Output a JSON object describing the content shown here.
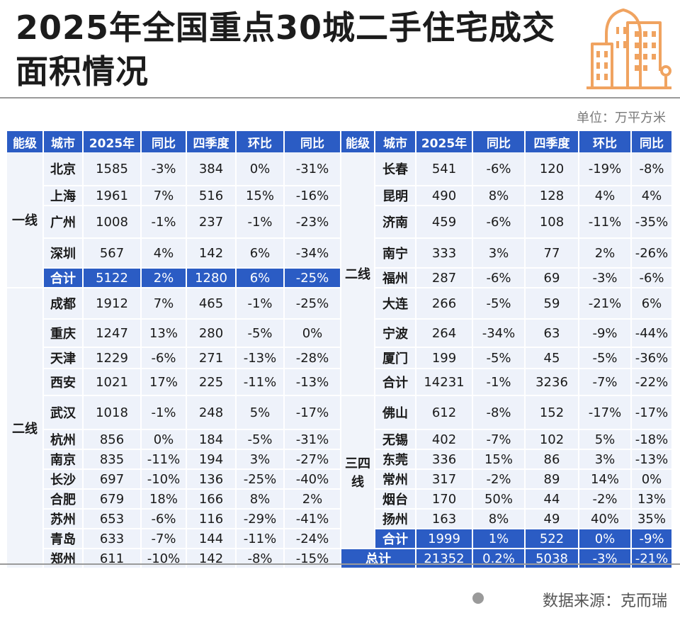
{
  "title": "2025年全国重点30城二手住宅成交面积情况",
  "unit": "单位：万平方米",
  "source": "数据来源：克而瑞",
  "logo_icon": "buildings-icon",
  "colors": {
    "header": "#2b5cc4",
    "cell": "#eef2fa",
    "logo": "#f0a360"
  },
  "headers": [
    "能级",
    "城市",
    "2025年",
    "同比",
    "四季度",
    "环比",
    "同比"
  ],
  "tiers": {
    "t1": "一线",
    "t2": "二线",
    "t3": "三四线"
  },
  "labels": {
    "subtotal": "合计",
    "total": "总计"
  },
  "left": {
    "tier1": [
      {
        "city": "北京",
        "y2025": "1585",
        "yoy": "-3%",
        "q4": "384",
        "qoq": "0%",
        "q4yoy": "-31%"
      },
      {
        "city": "上海",
        "y2025": "1961",
        "yoy": "7%",
        "q4": "516",
        "qoq": "15%",
        "q4yoy": "-16%"
      },
      {
        "city": "广州",
        "y2025": "1008",
        "yoy": "-1%",
        "q4": "237",
        "qoq": "-1%",
        "q4yoy": "-23%"
      },
      {
        "city": "深圳",
        "y2025": "567",
        "yoy": "4%",
        "q4": "142",
        "qoq": "6%",
        "q4yoy": "-34%"
      }
    ],
    "tier1_total": {
      "y2025": "5122",
      "yoy": "2%",
      "q4": "1280",
      "qoq": "6%",
      "q4yoy": "-25%"
    },
    "tier2": [
      {
        "city": "成都",
        "y2025": "1912",
        "yoy": "7%",
        "q4": "465",
        "qoq": "-1%",
        "q4yoy": "-25%"
      },
      {
        "city": "重庆",
        "y2025": "1247",
        "yoy": "13%",
        "q4": "280",
        "qoq": "-5%",
        "q4yoy": "0%"
      },
      {
        "city": "天津",
        "y2025": "1229",
        "yoy": "-6%",
        "q4": "271",
        "qoq": "-13%",
        "q4yoy": "-28%"
      },
      {
        "city": "西安",
        "y2025": "1021",
        "yoy": "17%",
        "q4": "225",
        "qoq": "-11%",
        "q4yoy": "-13%"
      },
      {
        "city": "武汉",
        "y2025": "1018",
        "yoy": "-1%",
        "q4": "248",
        "qoq": "5%",
        "q4yoy": "-17%"
      },
      {
        "city": "杭州",
        "y2025": "856",
        "yoy": "0%",
        "q4": "184",
        "qoq": "-5%",
        "q4yoy": "-31%"
      },
      {
        "city": "南京",
        "y2025": "835",
        "yoy": "-11%",
        "q4": "194",
        "qoq": "3%",
        "q4yoy": "-27%"
      },
      {
        "city": "长沙",
        "y2025": "697",
        "yoy": "-10%",
        "q4": "136",
        "qoq": "-25%",
        "q4yoy": "-40%"
      },
      {
        "city": "合肥",
        "y2025": "679",
        "yoy": "18%",
        "q4": "166",
        "qoq": "8%",
        "q4yoy": "2%"
      },
      {
        "city": "苏州",
        "y2025": "653",
        "yoy": "-6%",
        "q4": "116",
        "qoq": "-29%",
        "q4yoy": "-41%"
      },
      {
        "city": "青岛",
        "y2025": "633",
        "yoy": "-7%",
        "q4": "144",
        "qoq": "-11%",
        "q4yoy": "-24%"
      },
      {
        "city": "郑州",
        "y2025": "611",
        "yoy": "-10%",
        "q4": "142",
        "qoq": "-8%",
        "q4yoy": "-15%"
      }
    ]
  },
  "right": {
    "tier2": [
      {
        "city": "长春",
        "y2025": "541",
        "yoy": "-6%",
        "q4": "120",
        "qoq": "-19%",
        "q4yoy": "-8%"
      },
      {
        "city": "昆明",
        "y2025": "490",
        "yoy": "8%",
        "q4": "128",
        "qoq": "4%",
        "q4yoy": "4%"
      },
      {
        "city": "济南",
        "y2025": "459",
        "yoy": "-6%",
        "q4": "108",
        "qoq": "-11%",
        "q4yoy": "-35%"
      },
      {
        "city": "南宁",
        "y2025": "333",
        "yoy": "3%",
        "q4": "77",
        "qoq": "2%",
        "q4yoy": "-26%"
      },
      {
        "city": "福州",
        "y2025": "287",
        "yoy": "-6%",
        "q4": "69",
        "qoq": "-3%",
        "q4yoy": "-6%"
      },
      {
        "city": "大连",
        "y2025": "266",
        "yoy": "-5%",
        "q4": "59",
        "qoq": "-21%",
        "q4yoy": "6%"
      },
      {
        "city": "宁波",
        "y2025": "264",
        "yoy": "-34%",
        "q4": "63",
        "qoq": "-9%",
        "q4yoy": "-44%"
      },
      {
        "city": "厦门",
        "y2025": "199",
        "yoy": "-5%",
        "q4": "45",
        "qoq": "-5%",
        "q4yoy": "-36%"
      }
    ],
    "tier2_total": {
      "city": "合计",
      "y2025": "14231",
      "yoy": "-1%",
      "q4": "3236",
      "qoq": "-7%",
      "q4yoy": "-22%"
    },
    "tier3": [
      {
        "city": "佛山",
        "y2025": "612",
        "yoy": "-8%",
        "q4": "152",
        "qoq": "-17%",
        "q4yoy": "-17%"
      },
      {
        "city": "无锡",
        "y2025": "402",
        "yoy": "-7%",
        "q4": "102",
        "qoq": "5%",
        "q4yoy": "-18%"
      },
      {
        "city": "东莞",
        "y2025": "336",
        "yoy": "15%",
        "q4": "86",
        "qoq": "3%",
        "q4yoy": "-13%"
      },
      {
        "city": "常州",
        "y2025": "317",
        "yoy": "-2%",
        "q4": "89",
        "qoq": "14%",
        "q4yoy": "0%"
      },
      {
        "city": "烟台",
        "y2025": "170",
        "yoy": "50%",
        "q4": "44",
        "qoq": "-2%",
        "q4yoy": "13%"
      },
      {
        "city": "扬州",
        "y2025": "163",
        "yoy": "8%",
        "q4": "49",
        "qoq": "40%",
        "q4yoy": "35%"
      }
    ],
    "tier3_total": {
      "y2025": "1999",
      "yoy": "1%",
      "q4": "522",
      "qoq": "0%",
      "q4yoy": "-9%"
    },
    "grand_total": {
      "y2025": "21352",
      "yoy": "0.2%",
      "q4": "5038",
      "qoq": "-3%",
      "q4yoy": "-21%"
    }
  }
}
